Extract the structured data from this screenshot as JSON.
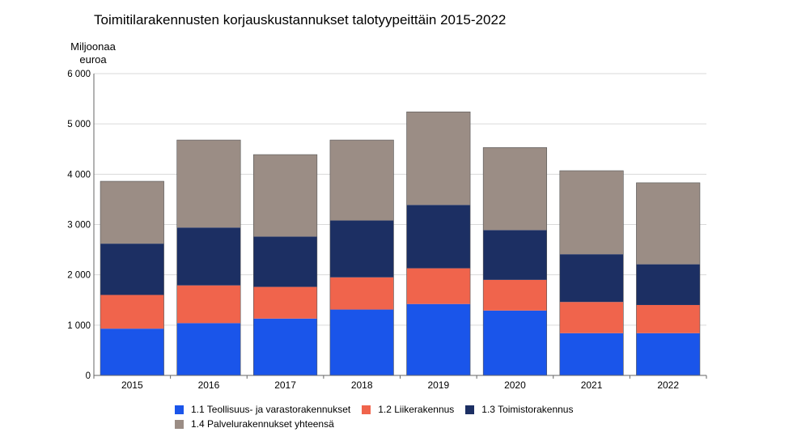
{
  "chart_data": {
    "type": "bar",
    "stacked": true,
    "title": "Toimitilarakennusten korjauskustannukset talotyypeittäin 2015-2022",
    "ylabel": "Miljoonaa euroa",
    "xlabel": "",
    "categories": [
      "2015",
      "2016",
      "2017",
      "2018",
      "2019",
      "2020",
      "2021",
      "2022"
    ],
    "ylim": [
      0,
      6000
    ],
    "yticks": [
      0,
      1000,
      2000,
      3000,
      4000,
      5000,
      6000
    ],
    "ytick_labels": [
      "0",
      "1 000",
      "2 000",
      "3 000",
      "4 000",
      "5 000",
      "6 000"
    ],
    "grid": true,
    "legend_position": "bottom",
    "series": [
      {
        "name": "1.1 Teollisuus- ja varastorakennukset",
        "color": "#1a55ea",
        "values": [
          930,
          1040,
          1130,
          1310,
          1420,
          1290,
          840,
          840
        ]
      },
      {
        "name": "1.2 Liikerakennus",
        "color": "#f0644c",
        "values": [
          670,
          750,
          630,
          640,
          710,
          610,
          620,
          560
        ]
      },
      {
        "name": "1.3 Toimistorakennus",
        "color": "#1c2f63",
        "values": [
          1020,
          1150,
          1000,
          1130,
          1260,
          990,
          950,
          810
        ]
      },
      {
        "name": "1.4 Palvelurakennukset yhteensä",
        "color": "#9b8d85",
        "values": [
          1240,
          1740,
          1630,
          1600,
          1850,
          1640,
          1660,
          1620
        ]
      }
    ]
  }
}
